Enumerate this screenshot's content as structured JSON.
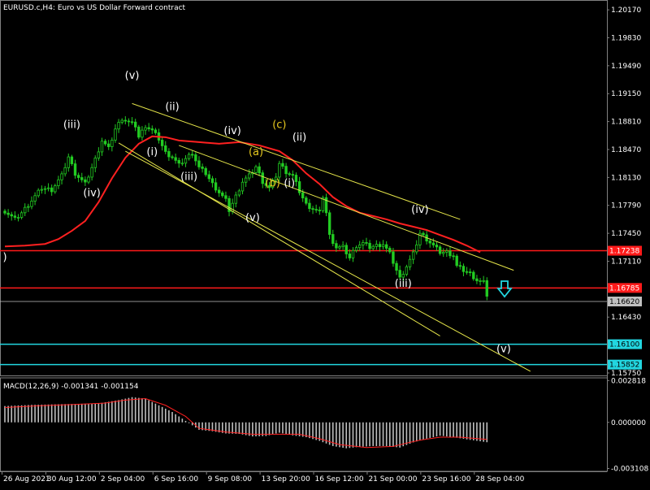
{
  "header": {
    "title": "EURUSD.c,H4:  Euro vs US Dollar Forward contract",
    "macd_label": "MACD(12,26,9) -0.001341 -0.001154"
  },
  "colors": {
    "background": "#000000",
    "grid": "#2a2a2a",
    "candle": "#22cc22",
    "ma": "#ff2020",
    "channel": "#e6e64a",
    "wave_white": "#ffffff",
    "wave_yellow": "#e6c81e",
    "level_red": "#ff1a1a",
    "level_cyan": "#22d6e0",
    "arrow": "#22d6e0",
    "macd_hist": "#bfbfbf",
    "macd_signal": "#ff2020"
  },
  "chart_data": {
    "type": "candlestick",
    "ylim": [
      1.1572,
      1.2029
    ],
    "y_ticks": [
      "1.20170",
      "1.19830",
      "1.19490",
      "1.19150",
      "1.18810",
      "1.18470",
      "1.18130",
      "1.17790",
      "1.17450",
      "1.17110",
      "1.16430",
      "1.15750"
    ],
    "x_ticks": [
      "26 Aug 2021",
      "30 Aug 12:00",
      "2 Sep 04:00",
      "6 Sep 16:00",
      "9 Sep 08:00",
      "13 Sep 20:00",
      "16 Sep 12:00",
      "21 Sep 00:00",
      "23 Sep 16:00",
      "28 Sep 04:00"
    ],
    "price_levels": [
      {
        "value": 1.17238,
        "label": "1.17238",
        "color": "#ff1a1a"
      },
      {
        "value": 1.16785,
        "label": "1.16785",
        "color": "#ff1a1a"
      },
      {
        "value": 1.1662,
        "label": "1.16620",
        "color": "#c0c0c0"
      },
      {
        "value": 1.161,
        "label": "1.16100",
        "color": "#22d6e0"
      },
      {
        "value": 1.15852,
        "label": "1.15852",
        "color": "#22d6e0"
      }
    ],
    "price_path": [
      [
        0,
        1.1772
      ],
      [
        3,
        1.1762
      ],
      [
        5,
        1.177
      ],
      [
        8,
        1.1785
      ],
      [
        11,
        1.18
      ],
      [
        14,
        1.1798
      ],
      [
        17,
        1.1815
      ],
      [
        19,
        1.1838
      ],
      [
        21,
        1.1818
      ],
      [
        24,
        1.1805
      ],
      [
        27,
        1.1835
      ],
      [
        29,
        1.1858
      ],
      [
        31,
        1.1848
      ],
      [
        33,
        1.1872
      ],
      [
        35,
        1.1885
      ],
      [
        37,
        1.188
      ],
      [
        39,
        1.1876
      ],
      [
        40,
        1.1862
      ],
      [
        42,
        1.1876
      ],
      [
        44,
        1.187
      ],
      [
        46,
        1.186
      ],
      [
        48,
        1.1843
      ],
      [
        50,
        1.1838
      ],
      [
        52,
        1.1828
      ],
      [
        54,
        1.1836
      ],
      [
        56,
        1.1843
      ],
      [
        58,
        1.1825
      ],
      [
        60,
        1.1818
      ],
      [
        62,
        1.1805
      ],
      [
        64,
        1.1795
      ],
      [
        66,
        1.1785
      ],
      [
        67,
        1.1773
      ],
      [
        69,
        1.179
      ],
      [
        71,
        1.1808
      ],
      [
        73,
        1.1815
      ],
      [
        75,
        1.1826
      ],
      [
        77,
        1.1808
      ],
      [
        79,
        1.18
      ],
      [
        81,
        1.1815
      ],
      [
        82,
        1.183
      ],
      [
        84,
        1.182
      ],
      [
        86,
        1.1815
      ],
      [
        88,
        1.1796
      ],
      [
        90,
        1.178
      ],
      [
        92,
        1.1775
      ],
      [
        94,
        1.177
      ],
      [
        95,
        1.179
      ],
      [
        96,
        1.177
      ],
      [
        97,
        1.1742
      ],
      [
        99,
        1.1728
      ],
      [
        101,
        1.1728
      ],
      [
        103,
        1.1715
      ],
      [
        105,
        1.173
      ],
      [
        107,
        1.1733
      ],
      [
        109,
        1.1728
      ],
      [
        111,
        1.173
      ],
      [
        113,
        1.1732
      ],
      [
        115,
        1.172
      ],
      [
        117,
        1.17
      ],
      [
        118,
        1.169
      ],
      [
        120,
        1.1705
      ],
      [
        122,
        1.172
      ],
      [
        124,
        1.1745
      ],
      [
        126,
        1.1738
      ],
      [
        128,
        1.173
      ],
      [
        130,
        1.1722
      ],
      [
        132,
        1.1722
      ],
      [
        134,
        1.1718
      ],
      [
        135,
        1.1705
      ],
      [
        137,
        1.17
      ],
      [
        139,
        1.1696
      ],
      [
        141,
        1.1688
      ],
      [
        143,
        1.1685
      ],
      [
        144,
        1.167
      ]
    ],
    "ma_path": [
      [
        0,
        1.1729
      ],
      [
        6,
        1.173
      ],
      [
        12,
        1.1732
      ],
      [
        16,
        1.1738
      ],
      [
        20,
        1.1748
      ],
      [
        24,
        1.176
      ],
      [
        28,
        1.1783
      ],
      [
        32,
        1.1812
      ],
      [
        36,
        1.1837
      ],
      [
        40,
        1.1854
      ],
      [
        44,
        1.1863
      ],
      [
        48,
        1.1862
      ],
      [
        52,
        1.1858
      ],
      [
        58,
        1.1856
      ],
      [
        64,
        1.1854
      ],
      [
        70,
        1.1856
      ],
      [
        76,
        1.1852
      ],
      [
        82,
        1.1845
      ],
      [
        86,
        1.1834
      ],
      [
        90,
        1.1818
      ],
      [
        94,
        1.1805
      ],
      [
        98,
        1.1789
      ],
      [
        102,
        1.1778
      ],
      [
        106,
        1.177
      ],
      [
        110,
        1.1766
      ],
      [
        114,
        1.1762
      ],
      [
        118,
        1.1757
      ],
      [
        122,
        1.1753
      ],
      [
        126,
        1.1749
      ],
      [
        130,
        1.1743
      ],
      [
        134,
        1.1737
      ],
      [
        138,
        1.173
      ],
      [
        142,
        1.1722
      ]
    ],
    "channel_lines": [
      [
        [
          38,
          1.1903
        ],
        [
          136,
          1.1762
        ]
      ],
      [
        [
          52,
          1.1852
        ],
        [
          152,
          1.17
        ]
      ],
      [
        [
          34,
          1.1855
        ],
        [
          130,
          1.162
        ]
      ],
      [
        [
          36,
          1.1845
        ],
        [
          157,
          1.1577
        ]
      ]
    ],
    "wave_labels": [
      {
        "text": "(v)",
        "x": 38,
        "y": 1.1933,
        "color": "white"
      },
      {
        "text": "(iii)",
        "x": 20,
        "y": 1.1873,
        "color": "white"
      },
      {
        "text": "(iv)",
        "x": 26,
        "y": 1.179,
        "color": "white"
      },
      {
        "text": "(ii)",
        "x": 50,
        "y": 1.1895,
        "color": "white"
      },
      {
        "text": "(i)",
        "x": 44,
        "y": 1.184,
        "color": "white"
      },
      {
        "text": "(iii)",
        "x": 55,
        "y": 1.181,
        "color": "white"
      },
      {
        "text": "(iv)",
        "x": 68,
        "y": 1.1866,
        "color": "white"
      },
      {
        "text": "(v)",
        "x": 74,
        "y": 1.176,
        "color": "white"
      },
      {
        "text": "(a)",
        "x": 75,
        "y": 1.184,
        "color": "yellow"
      },
      {
        "text": "(b)",
        "x": 80,
        "y": 1.1802,
        "color": "yellow"
      },
      {
        "text": "(c)",
        "x": 82,
        "y": 1.1873,
        "color": "yellow"
      },
      {
        "text": "(ii)",
        "x": 88,
        "y": 1.1858,
        "color": "white"
      },
      {
        "text": "(i)",
        "x": 85,
        "y": 1.1802,
        "color": "white"
      },
      {
        "text": "(iv)",
        "x": 124,
        "y": 1.177,
        "color": "white"
      },
      {
        "text": "(iii)",
        "x": 119,
        "y": 1.168,
        "color": "white"
      },
      {
        "text": "(v)",
        "x": 149,
        "y": 1.16,
        "color": "white"
      },
      {
        "text": ")",
        "x": 0,
        "y": 1.1712,
        "color": "white"
      }
    ],
    "macd": {
      "ylim": [
        -0.0033,
        0.003
      ],
      "y_ticks": [
        "0.002818",
        "0.000000",
        "-0.003108"
      ],
      "histogram_path": [
        [
          0,
          0.0011
        ],
        [
          8,
          0.00118
        ],
        [
          16,
          0.00122
        ],
        [
          22,
          0.00125
        ],
        [
          28,
          0.00128
        ],
        [
          34,
          0.0015
        ],
        [
          38,
          0.0017
        ],
        [
          42,
          0.0016
        ],
        [
          46,
          0.00115
        ],
        [
          50,
          0.0007
        ],
        [
          54,
          0.0001
        ],
        [
          58,
          -0.0005
        ],
        [
          62,
          -0.0006
        ],
        [
          66,
          -0.00075
        ],
        [
          70,
          -0.00078
        ],
        [
          74,
          -0.00095
        ],
        [
          78,
          -0.00092
        ],
        [
          82,
          -0.0007
        ],
        [
          86,
          -0.00088
        ],
        [
          90,
          -0.001
        ],
        [
          94,
          -0.00125
        ],
        [
          98,
          -0.0016
        ],
        [
          102,
          -0.00175
        ],
        [
          106,
          -0.00165
        ],
        [
          110,
          -0.0016
        ],
        [
          114,
          -0.0016
        ],
        [
          118,
          -0.0017
        ],
        [
          122,
          -0.00135
        ],
        [
          126,
          -0.0011
        ],
        [
          130,
          -0.0009
        ],
        [
          134,
          -0.001
        ],
        [
          138,
          -0.00115
        ],
        [
          144,
          -0.00134
        ]
      ],
      "signal_path": [
        [
          0,
          0.001
        ],
        [
          10,
          0.00112
        ],
        [
          20,
          0.0012
        ],
        [
          30,
          0.0013
        ],
        [
          36,
          0.0015
        ],
        [
          42,
          0.0016
        ],
        [
          48,
          0.00115
        ],
        [
          54,
          0.0004
        ],
        [
          58,
          -0.0004
        ],
        [
          66,
          -0.00065
        ],
        [
          74,
          -0.0008
        ],
        [
          82,
          -0.0008
        ],
        [
          88,
          -0.0008
        ],
        [
          94,
          -0.0011
        ],
        [
          100,
          -0.0015
        ],
        [
          108,
          -0.0017
        ],
        [
          116,
          -0.00162
        ],
        [
          120,
          -0.0014
        ],
        [
          124,
          -0.0012
        ],
        [
          130,
          -0.001
        ],
        [
          136,
          -0.001
        ],
        [
          144,
          -0.00115
        ]
      ]
    }
  }
}
